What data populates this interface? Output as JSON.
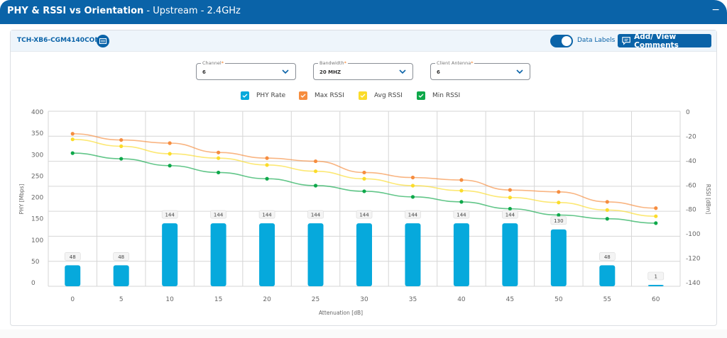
{
  "header": {
    "title_main": "PHY & RSSI vs Orientation",
    "title_sub": " - Upstream - 2.4GHz",
    "collapse_icon": "minus-icon",
    "collapse_label": "−"
  },
  "device": {
    "name": "TCH-XB6-CGM4140COM",
    "icon": "device-info-icon"
  },
  "toggle": {
    "label": "Data Labels",
    "on": true
  },
  "comments_button": {
    "label": "Add/ View Comments",
    "icon": "comment-icon"
  },
  "filters": [
    {
      "label": "Channel",
      "required_mark": "*",
      "value": "6"
    },
    {
      "label": "Bandwidth",
      "required_mark": "*",
      "value": "20 MHZ"
    },
    {
      "label": "Client Antenna",
      "required_mark": "*",
      "value": "6"
    }
  ],
  "legend": [
    {
      "label": "PHY Rate",
      "color": "#06a9dc",
      "checked": true
    },
    {
      "label": "Max RSSI",
      "color": "#f68d3f",
      "checked": true
    },
    {
      "label": "Avg RSSI",
      "color": "#fbdc2a",
      "checked": true
    },
    {
      "label": "Min RSSI",
      "color": "#0ea84a",
      "checked": true
    }
  ],
  "chart_data": {
    "type": "bar",
    "title": "PHY & RSSI vs Orientation",
    "xlabel": "Attenuation [dB]",
    "ylabel": "PHY [Mbps]",
    "y2label": "RSSI [dBm]",
    "categories": [
      "0",
      "5",
      "10",
      "15",
      "20",
      "25",
      "30",
      "35",
      "40",
      "45",
      "50",
      "55",
      "60"
    ],
    "ylim": [
      0,
      400
    ],
    "y_ticks": [
      "400",
      "350",
      "300",
      "250",
      "200",
      "150",
      "100",
      "50",
      "0"
    ],
    "y2lim": [
      -140,
      0
    ],
    "y2_ticks": [
      "0",
      "-20",
      "-40",
      "-60",
      "-80",
      "-100",
      "-120",
      "-140"
    ],
    "grid": true,
    "legend_position": "top-center",
    "series": [
      {
        "name": "PHY Rate",
        "type": "bar",
        "axis": "left",
        "color": "#06a9dc",
        "values": [
          48,
          48,
          144,
          144,
          144,
          144,
          144,
          144,
          144,
          144,
          130,
          48,
          1
        ]
      },
      {
        "name": "Max RSSI",
        "type": "line",
        "axis": "right",
        "color": "#f68d3f",
        "values": [
          -18,
          -23,
          -25.5,
          -33,
          -37.5,
          -40,
          -49,
          -53,
          -55,
          -63,
          -64.5,
          -72.5,
          -77.5
        ]
      },
      {
        "name": "Avg RSSI",
        "type": "line",
        "axis": "right",
        "color": "#fbdc2a",
        "values": [
          -22.5,
          -28,
          -34,
          -37.5,
          -43,
          -48,
          -54,
          -59.5,
          -63.5,
          -69,
          -73,
          -79,
          -84
        ]
      },
      {
        "name": "Min RSSI",
        "type": "line",
        "axis": "right",
        "color": "#0ea84a",
        "values": [
          -33.5,
          -38,
          -43.5,
          -49,
          -54,
          -59.5,
          -64,
          -68.5,
          -72.5,
          -78,
          -83,
          -86,
          -89.5
        ]
      }
    ]
  }
}
